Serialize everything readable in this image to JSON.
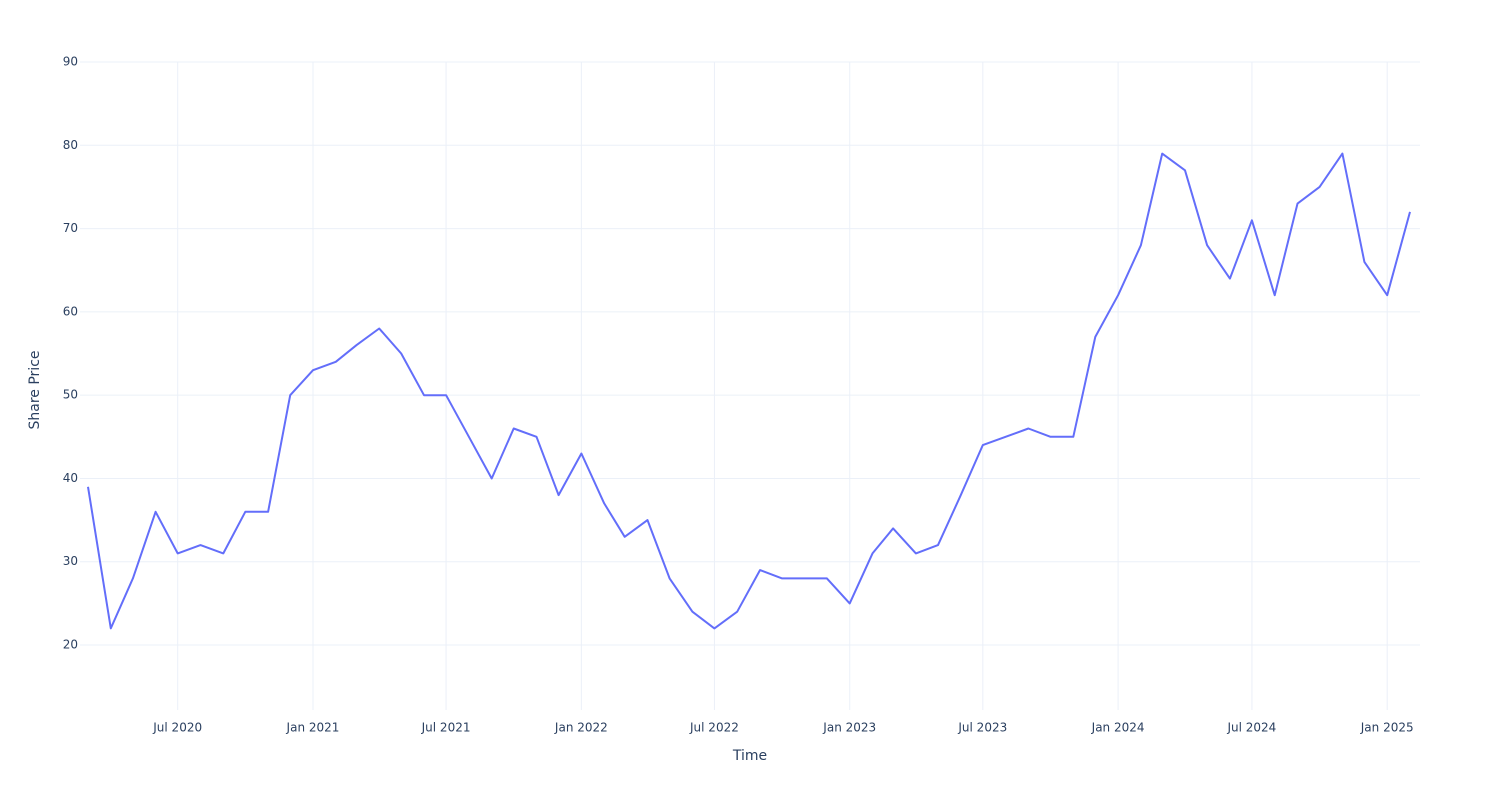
{
  "chart_data": {
    "type": "line",
    "x_label": "Time",
    "y_label": "Share Price",
    "x": [
      "2020-03",
      "2020-04",
      "2020-05",
      "2020-06",
      "2020-07",
      "2020-08",
      "2020-09",
      "2020-10",
      "2020-11",
      "2020-12",
      "2021-01",
      "2021-02",
      "2021-03",
      "2021-04",
      "2021-05",
      "2021-06",
      "2021-07",
      "2021-08",
      "2021-09",
      "2021-10",
      "2021-11",
      "2021-12",
      "2022-01",
      "2022-02",
      "2022-03",
      "2022-04",
      "2022-05",
      "2022-06",
      "2022-07",
      "2022-08",
      "2022-09",
      "2022-10",
      "2022-11",
      "2022-12",
      "2023-01",
      "2023-02",
      "2023-03",
      "2023-04",
      "2023-05",
      "2023-06",
      "2023-07",
      "2023-08",
      "2023-09",
      "2023-10",
      "2023-11",
      "2023-12",
      "2024-01",
      "2024-02",
      "2024-03",
      "2024-04",
      "2024-05",
      "2024-06",
      "2024-07",
      "2024-08",
      "2024-09",
      "2024-10",
      "2024-11",
      "2024-12",
      "2025-01",
      "2025-02"
    ],
    "series": [
      {
        "name": "Share Price",
        "color": "#636efa",
        "values": [
          39,
          22,
          28,
          36,
          31,
          32,
          31,
          36,
          36,
          50,
          53,
          54,
          56,
          58,
          55,
          50,
          50,
          45,
          40,
          46,
          45,
          38,
          43,
          37,
          33,
          35,
          28,
          24,
          22,
          24,
          29,
          28,
          28,
          28,
          25,
          31,
          34,
          31,
          32,
          38,
          44,
          45,
          46,
          45,
          45,
          57,
          62,
          68,
          79,
          77,
          68,
          64,
          71,
          62,
          73,
          75,
          79,
          66,
          62,
          72
        ]
      }
    ],
    "xlim": [
      "2020-03",
      "2025-02"
    ],
    "xticks": [
      {
        "value": "2020-07",
        "label": "Jul 2020"
      },
      {
        "value": "2021-01",
        "label": "Jan 2021"
      },
      {
        "value": "2021-07",
        "label": "Jul 2021"
      },
      {
        "value": "2022-01",
        "label": "Jan 2022"
      },
      {
        "value": "2022-07",
        "label": "Jul 2022"
      },
      {
        "value": "2023-01",
        "label": "Jan 2023"
      },
      {
        "value": "2023-07",
        "label": "Jul 2023"
      },
      {
        "value": "2024-01",
        "label": "Jan 2024"
      },
      {
        "value": "2024-07",
        "label": "Jul 2024"
      },
      {
        "value": "2025-01",
        "label": "Jan 2025"
      }
    ],
    "ylim": [
      12.2,
      90
    ],
    "yticks": [
      20,
      30,
      40,
      50,
      60,
      70,
      80,
      90
    ],
    "grid": true
  }
}
